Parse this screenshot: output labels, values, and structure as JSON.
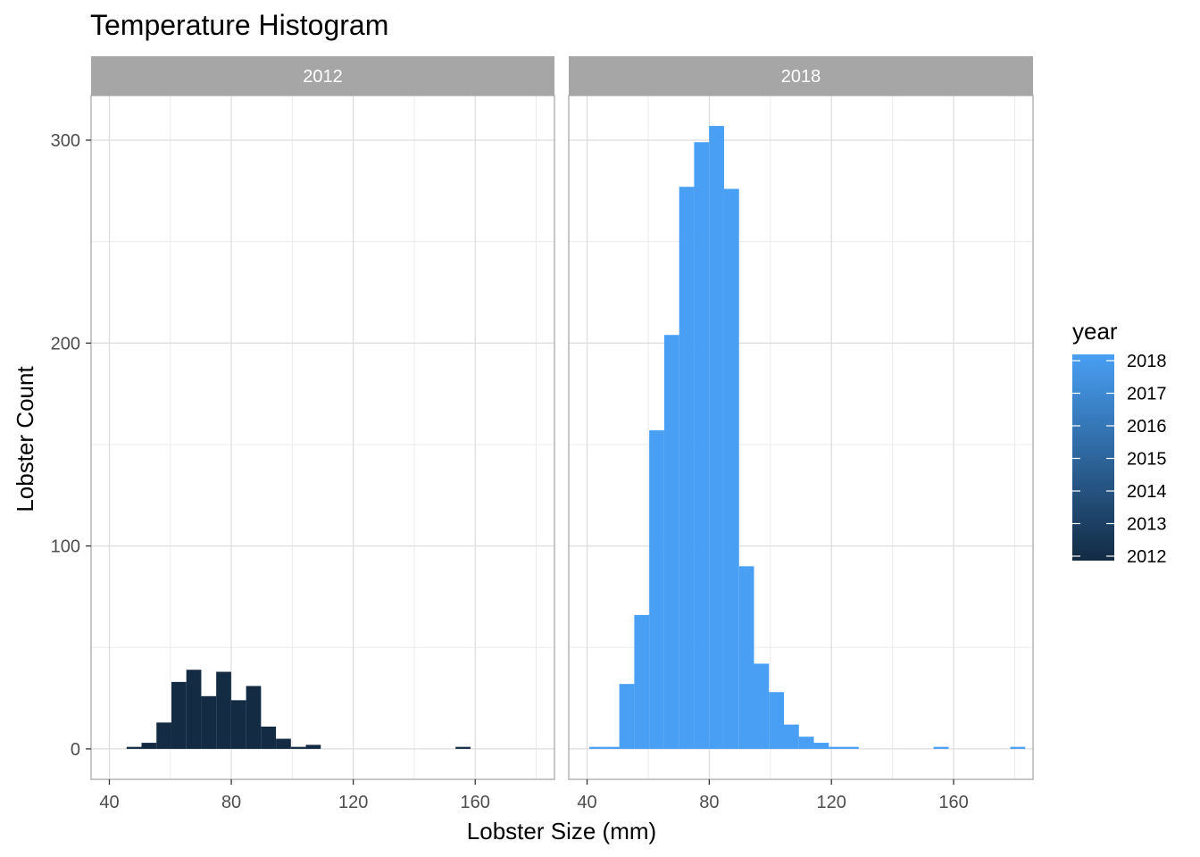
{
  "chart_data": {
    "type": "bar",
    "title": "Temperature Histogram",
    "xlabel": "Lobster Size (mm)",
    "ylabel": "Lobster Count",
    "xlim": [
      34,
      186
    ],
    "ylim": [
      -15,
      322
    ],
    "x_ticks": [
      40,
      80,
      120,
      160
    ],
    "y_ticks": [
      0,
      100,
      200,
      300
    ],
    "grid": true,
    "bin_width": 4.9,
    "legend": {
      "title": "year",
      "placement": "right",
      "labels": [
        "2018",
        "2017",
        "2016",
        "2015",
        "2014",
        "2013",
        "2012"
      ],
      "low_color": "#132B43",
      "high_color": "#489FF4"
    },
    "panels": [
      {
        "strip": "2012",
        "color": "#132B43",
        "bins": [
          {
            "x": 48.1,
            "count": 1
          },
          {
            "x": 53.0,
            "count": 3
          },
          {
            "x": 57.9,
            "count": 13
          },
          {
            "x": 62.8,
            "count": 33
          },
          {
            "x": 67.7,
            "count": 39
          },
          {
            "x": 72.6,
            "count": 26
          },
          {
            "x": 77.5,
            "count": 38
          },
          {
            "x": 82.4,
            "count": 24
          },
          {
            "x": 87.3,
            "count": 31
          },
          {
            "x": 92.2,
            "count": 11
          },
          {
            "x": 97.1,
            "count": 5
          },
          {
            "x": 102.0,
            "count": 1
          },
          {
            "x": 106.9,
            "count": 2
          },
          {
            "x": 156.0,
            "count": 1
          }
        ]
      },
      {
        "strip": "2018",
        "color": "#489FF4",
        "bins": [
          {
            "x": 43.2,
            "count": 1
          },
          {
            "x": 48.1,
            "count": 1
          },
          {
            "x": 53.0,
            "count": 32
          },
          {
            "x": 57.9,
            "count": 66
          },
          {
            "x": 62.8,
            "count": 157
          },
          {
            "x": 67.7,
            "count": 204
          },
          {
            "x": 72.6,
            "count": 277
          },
          {
            "x": 77.5,
            "count": 299
          },
          {
            "x": 82.4,
            "count": 307
          },
          {
            "x": 87.3,
            "count": 276
          },
          {
            "x": 92.2,
            "count": 90
          },
          {
            "x": 97.1,
            "count": 42
          },
          {
            "x": 102.0,
            "count": 28
          },
          {
            "x": 106.9,
            "count": 12
          },
          {
            "x": 111.8,
            "count": 6
          },
          {
            "x": 116.7,
            "count": 3
          },
          {
            "x": 121.6,
            "count": 1
          },
          {
            "x": 126.5,
            "count": 1
          },
          {
            "x": 155.9,
            "count": 1
          },
          {
            "x": 181.0,
            "count": 1
          }
        ]
      }
    ]
  }
}
